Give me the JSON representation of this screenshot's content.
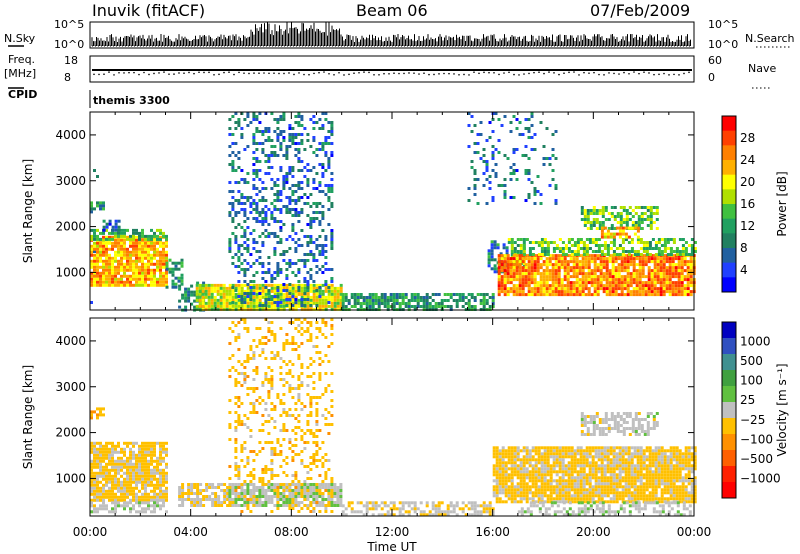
{
  "header": {
    "station": "Inuvik (fitACF)",
    "beam": "Beam 06",
    "date": "07/Feb/2009"
  },
  "top_panels": {
    "nsky_label": "N.Sky",
    "nsky_ticks": [
      "10^5",
      "10^0"
    ],
    "nsearch_label": "N.Search",
    "nsearch_ticks": [
      "10^5",
      "10^0"
    ],
    "freq_label": "Freq.",
    "freq_unit": "[MHz]",
    "freq_ticks": [
      "18",
      "8"
    ],
    "nave_label": "Nave",
    "nave_ticks": [
      "60",
      "0"
    ],
    "cpid_label": "CPID",
    "cpid_text": "themis 3300"
  },
  "chart_data": [
    {
      "type": "heatmap",
      "name": "power",
      "ylabel": "Slant Range [km]",
      "xlabel": "",
      "xlim": [
        "00:00",
        "00:00"
      ],
      "x_ticks": [
        "00:00",
        "04:00",
        "08:00",
        "12:00",
        "16:00",
        "20:00",
        "00:00"
      ],
      "ylim": [
        180,
        4500
      ],
      "y_ticks": [
        1000,
        2000,
        3000,
        4000
      ],
      "colorbar": {
        "label": "Power [dB]",
        "ticks": [
          "28",
          "24",
          "20",
          "16",
          "12",
          "8",
          "4"
        ],
        "colors": [
          "#ff0000",
          "#ff4000",
          "#ff8000",
          "#ffb000",
          "#ffff00",
          "#b0e000",
          "#40c040",
          "#20a060",
          "#208060",
          "#2060a0",
          "#2040ff",
          "#0000ff"
        ]
      },
      "regions": [
        {
          "t0": 0.0,
          "t1": 0.3,
          "r0": 200,
          "r1": 4500,
          "value": 6,
          "density": 0.02
        },
        {
          "t0": 0.0,
          "t1": 3.0,
          "r0": 700,
          "r1": 1800,
          "value": 22,
          "density": 0.9
        },
        {
          "t0": 0.0,
          "t1": 3.0,
          "r0": 1700,
          "r1": 1950,
          "value": 12,
          "density": 0.6
        },
        {
          "t0": 0.0,
          "t1": 0.5,
          "r0": 2350,
          "r1": 2550,
          "value": 10,
          "density": 0.7
        },
        {
          "t0": 0.5,
          "t1": 1.2,
          "r0": 1950,
          "r1": 2150,
          "value": 6,
          "density": 0.5
        },
        {
          "t0": 3.0,
          "t1": 3.6,
          "r0": 700,
          "r1": 1300,
          "value": 10,
          "density": 0.5
        },
        {
          "t0": 3.5,
          "t1": 4.5,
          "r0": 200,
          "r1": 800,
          "value": 8,
          "density": 0.6
        },
        {
          "t0": 4.2,
          "t1": 10.0,
          "r0": 200,
          "r1": 750,
          "value": 18,
          "density": 0.95
        },
        {
          "t0": 5.5,
          "t1": 9.6,
          "r0": 300,
          "r1": 4500,
          "value": 6,
          "density": 0.3
        },
        {
          "t0": 10.0,
          "t1": 16.0,
          "r0": 200,
          "r1": 550,
          "value": 10,
          "density": 0.7
        },
        {
          "t0": 15.8,
          "t1": 16.6,
          "r0": 1000,
          "r1": 1700,
          "value": 8,
          "density": 0.6
        },
        {
          "t0": 16.6,
          "t1": 17.2,
          "r0": 1150,
          "r1": 1750,
          "value": 14,
          "density": 0.7
        },
        {
          "t0": 16.2,
          "t1": 24.0,
          "r0": 500,
          "r1": 1400,
          "value": 24,
          "density": 0.9
        },
        {
          "t0": 17.2,
          "t1": 24.0,
          "r0": 1400,
          "r1": 1750,
          "value": 14,
          "density": 0.6
        },
        {
          "t0": 19.5,
          "t1": 22.5,
          "r0": 1950,
          "r1": 2450,
          "value": 14,
          "density": 0.6
        },
        {
          "t0": 20.3,
          "t1": 21.8,
          "r0": 1750,
          "r1": 2000,
          "value": 22,
          "density": 0.6
        },
        {
          "t0": 15.0,
          "t1": 18.5,
          "r0": 2500,
          "r1": 4500,
          "value": 6,
          "density": 0.15
        }
      ]
    },
    {
      "type": "heatmap",
      "name": "velocity",
      "ylabel": "Slant Range [km]",
      "xlabel": "Time UT",
      "xlim": [
        "00:00",
        "00:00"
      ],
      "x_ticks": [
        "00:00",
        "04:00",
        "08:00",
        "12:00",
        "16:00",
        "20:00",
        "00:00"
      ],
      "ylim": [
        180,
        4500
      ],
      "y_ticks": [
        1000,
        2000,
        3000,
        4000
      ],
      "colorbar": {
        "label": "Velocity [m s⁻¹]",
        "ticks": [
          "1000",
          "500",
          "100",
          "25",
          "−25",
          "−100",
          "−500",
          "−1000"
        ],
        "colors": [
          "#0000c0",
          "#3050c0",
          "#409090",
          "#40a040",
          "#60c040",
          "#c0c0c0",
          "#ffc000",
          "#ff9000",
          "#ff6000",
          "#ff2000",
          "#ff0000"
        ]
      },
      "regions": [
        {
          "t0": 0.0,
          "t1": 3.0,
          "r0": 500,
          "r1": 1800,
          "value": -150,
          "density": 0.85
        },
        {
          "t0": 0.0,
          "t1": 0.5,
          "r0": 2350,
          "r1": 2550,
          "value": -300,
          "density": 0.6
        },
        {
          "t0": 0.0,
          "t1": 3.0,
          "r0": 300,
          "r1": 500,
          "value": 20,
          "density": 0.6
        },
        {
          "t0": 3.5,
          "t1": 5.5,
          "r0": 400,
          "r1": 900,
          "value": -80,
          "density": 0.7
        },
        {
          "t0": 5.5,
          "t1": 10.0,
          "r0": 400,
          "r1": 900,
          "value": 60,
          "density": 0.8
        },
        {
          "t0": 5.5,
          "t1": 9.6,
          "r0": 300,
          "r1": 4500,
          "value": -200,
          "density": 0.25
        },
        {
          "t0": 10.0,
          "t1": 16.0,
          "r0": 200,
          "r1": 500,
          "value": -60,
          "density": 0.6
        },
        {
          "t0": 16.0,
          "t1": 24.0,
          "r0": 500,
          "r1": 1700,
          "value": -150,
          "density": 0.9
        },
        {
          "t0": 19.5,
          "t1": 22.5,
          "r0": 1950,
          "r1": 2450,
          "value": 0,
          "density": 0.6
        },
        {
          "t0": 17.0,
          "t1": 24.0,
          "r0": 200,
          "r1": 500,
          "value": 30,
          "density": 0.5
        }
      ]
    }
  ]
}
